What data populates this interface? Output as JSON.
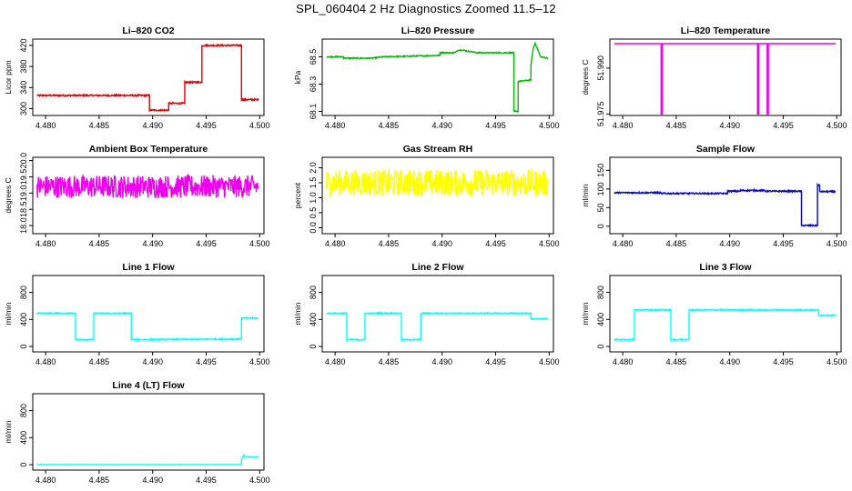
{
  "suptitle": "SPL_060404  2 Hz Diagnostics Zoomed 11.5–12",
  "chart_data": [
    {
      "type": "line",
      "title": "Li–820 CO2",
      "ylabel": "Licor ppm",
      "color": "#dd0000",
      "xlim": [
        4.4788,
        4.5004
      ],
      "ylim": [
        287,
        432
      ],
      "xticks": [
        "4.480",
        "4.485",
        "4.490",
        "4.495",
        "4.500"
      ],
      "yticks": [
        {
          "v": 300,
          "label": "300"
        },
        {
          "v": 340,
          "label": "340"
        },
        {
          "v": 380,
          "label": "380"
        },
        {
          "v": 420,
          "label": "420"
        }
      ],
      "x": [
        4.4792,
        4.4897,
        4.4897,
        4.4915,
        4.4915,
        4.493,
        4.493,
        4.4946,
        4.4946,
        4.4983,
        4.4983,
        4.4999
      ],
      "y": [
        325,
        325,
        297,
        297,
        310,
        310,
        350,
        350,
        420,
        420,
        317,
        317
      ],
      "noise": 1.5
    },
    {
      "type": "line",
      "title": "Li–820 Pressure",
      "ylabel": "kPa",
      "color": "#00bb00",
      "xlim": [
        4.4788,
        4.5004
      ],
      "ylim": [
        68.07,
        68.63
      ],
      "xticks": [
        "4.480",
        "4.485",
        "4.490",
        "4.495",
        "4.500"
      ],
      "yticks": [
        {
          "v": 68.1,
          "label": "68.1"
        },
        {
          "v": 68.3,
          "label": "68.3"
        },
        {
          "v": 68.5,
          "label": "68.5"
        }
      ],
      "x": [
        4.4792,
        4.4808,
        4.4808,
        4.4835,
        4.4845,
        4.4898,
        4.4898,
        4.4912,
        4.4915,
        4.4918,
        4.4933,
        4.4967,
        4.4967,
        4.4969,
        4.4971,
        4.4971,
        4.4983,
        4.4983,
        4.4985,
        4.4987,
        4.4989,
        4.4992,
        4.4999
      ],
      "y": [
        68.5,
        68.5,
        68.49,
        68.49,
        68.5,
        68.51,
        68.53,
        68.53,
        68.55,
        68.55,
        68.53,
        68.53,
        68.1,
        68.1,
        68.1,
        68.32,
        68.33,
        68.44,
        68.56,
        68.6,
        68.56,
        68.5,
        68.49
      ],
      "noise": 0.004
    },
    {
      "type": "line",
      "title": "Li–820 Temperature",
      "ylabel": "degrees C",
      "color": "#ee00ee",
      "xlim": [
        4.4788,
        4.5004
      ],
      "ylim": [
        51.9745,
        51.9995
      ],
      "xticks": [
        "4.480",
        "4.485",
        "4.490",
        "4.495",
        "4.500"
      ],
      "yticks": [
        {
          "v": 51.975,
          "label": "51.975"
        },
        {
          "v": 51.99,
          "label": "51.990"
        }
      ],
      "x": [
        4.4792,
        4.4836,
        4.4836,
        4.4837,
        4.4837,
        4.4926,
        4.4926,
        4.4927,
        4.4927,
        4.4935,
        4.4935,
        4.4936,
        4.4936,
        4.4999
      ],
      "y": [
        51.998,
        51.998,
        51.975,
        51.975,
        51.998,
        51.998,
        51.975,
        51.975,
        51.998,
        51.998,
        51.975,
        51.975,
        51.998,
        51.998
      ],
      "noise": 0
    },
    {
      "type": "line",
      "title": "Ambient Box Temperature",
      "ylabel": "degrees C",
      "color": "#ee00ee",
      "xlim": [
        4.4788,
        4.5004
      ],
      "ylim": [
        17.75,
        20.1
      ],
      "xticks": [
        "4.480",
        "4.485",
        "4.490",
        "4.495",
        "4.500"
      ],
      "yticks": [
        {
          "v": 18.0,
          "label": "18.0"
        },
        {
          "v": 18.5,
          "label": "18.5"
        },
        {
          "v": 19.0,
          "label": "19.0"
        },
        {
          "v": 19.5,
          "label": "19.5"
        },
        {
          "v": 20.0,
          "label": "20.0"
        }
      ],
      "x": [
        4.4792,
        4.4999
      ],
      "y": [
        19.2,
        19.2
      ],
      "noise": 0.35
    },
    {
      "type": "line",
      "title": "Gas Stream RH",
      "ylabel": "percent",
      "color": "#ffff00",
      "xlim": [
        4.4788,
        4.5004
      ],
      "ylim": [
        -0.2,
        2.35
      ],
      "xticks": [
        "4.480",
        "4.485",
        "4.490",
        "4.495",
        "4.500"
      ],
      "yticks": [
        {
          "v": 0.0,
          "label": "0.0"
        },
        {
          "v": 0.5,
          "label": "0.5"
        },
        {
          "v": 1.0,
          "label": "1.0"
        },
        {
          "v": 1.5,
          "label": "1.5"
        },
        {
          "v": 2.0,
          "label": "2.0"
        }
      ],
      "x": [
        4.4792,
        4.4999
      ],
      "y": [
        1.5,
        1.5
      ],
      "noise": 0.45
    },
    {
      "type": "line",
      "title": "Sample Flow",
      "ylabel": "ml/min",
      "color": "#0000dd",
      "xlim": [
        4.4788,
        4.5004
      ],
      "ylim": [
        -20,
        185
      ],
      "xticks": [
        "4.480",
        "4.485",
        "4.490",
        "4.495",
        "4.500"
      ],
      "yticks": [
        {
          "v": 0,
          "label": "0"
        },
        {
          "v": 50,
          "label": "50"
        },
        {
          "v": 100,
          "label": "100"
        },
        {
          "v": 150,
          "label": "150"
        }
      ],
      "x": [
        4.4792,
        4.4835,
        4.4835,
        4.4898,
        4.4898,
        4.491,
        4.491,
        4.4933,
        4.4933,
        4.4967,
        4.4967,
        4.4982,
        4.4982,
        4.4984,
        4.4984,
        4.4999
      ],
      "y": [
        90,
        90,
        88,
        88,
        94,
        94,
        96,
        96,
        94,
        94,
        2,
        2,
        110,
        110,
        93,
        93
      ],
      "noise": 1.8
    },
    {
      "type": "line",
      "title": "Line 1 Flow",
      "ylabel": "ml/min",
      "color": "#00ffff",
      "xlim": [
        4.4788,
        4.5004
      ],
      "ylim": [
        -80,
        1050
      ],
      "xticks": [
        "4.480",
        "4.485",
        "4.490",
        "4.495",
        "4.500"
      ],
      "yticks": [
        {
          "v": 0,
          "label": "0"
        },
        {
          "v": 400,
          "label": "400"
        },
        {
          "v": 800,
          "label": "800"
        }
      ],
      "x": [
        4.4792,
        4.4828,
        4.4828,
        4.4845,
        4.4845,
        4.488,
        4.488,
        4.4983,
        4.4983,
        4.4999
      ],
      "y": [
        490,
        490,
        100,
        100,
        490,
        490,
        100,
        110,
        420,
        420
      ],
      "noise": 9
    },
    {
      "type": "line",
      "title": "Line 2 Flow",
      "ylabel": "ml/min",
      "color": "#00ffff",
      "xlim": [
        4.4788,
        4.5004
      ],
      "ylim": [
        -80,
        1050
      ],
      "xticks": [
        "4.480",
        "4.485",
        "4.490",
        "4.495",
        "4.500"
      ],
      "yticks": [
        {
          "v": 0,
          "label": "0"
        },
        {
          "v": 400,
          "label": "400"
        },
        {
          "v": 800,
          "label": "800"
        }
      ],
      "x": [
        4.4792,
        4.4811,
        4.4811,
        4.4828,
        4.4828,
        4.4862,
        4.4862,
        4.488,
        4.488,
        4.4983,
        4.4983,
        4.4999
      ],
      "y": [
        490,
        490,
        100,
        100,
        490,
        490,
        100,
        100,
        490,
        490,
        410,
        410
      ],
      "noise": 9
    },
    {
      "type": "line",
      "title": "Line 3 Flow",
      "ylabel": "ml/min",
      "color": "#00ffff",
      "xlim": [
        4.4788,
        4.5004
      ],
      "ylim": [
        -80,
        1050
      ],
      "xticks": [
        "4.480",
        "4.485",
        "4.490",
        "4.495",
        "4.500"
      ],
      "yticks": [
        {
          "v": 0,
          "label": "0"
        },
        {
          "v": 400,
          "label": "400"
        },
        {
          "v": 800,
          "label": "800"
        }
      ],
      "x": [
        4.4792,
        4.4811,
        4.4811,
        4.4845,
        4.4845,
        4.4862,
        4.4862,
        4.4983,
        4.4983,
        4.4999
      ],
      "y": [
        100,
        100,
        540,
        540,
        100,
        100,
        540,
        540,
        460,
        460
      ],
      "noise": 9
    },
    {
      "type": "line",
      "title": "Line 4 (LT) Flow",
      "ylabel": "ml/min",
      "color": "#00ffff",
      "xlim": [
        4.4788,
        4.5004
      ],
      "ylim": [
        -80,
        1050
      ],
      "xticks": [
        "4.480",
        "4.485",
        "4.490",
        "4.495",
        "4.500"
      ],
      "yticks": [
        {
          "v": 0,
          "label": "0"
        },
        {
          "v": 400,
          "label": "400"
        },
        {
          "v": 800,
          "label": "800"
        }
      ],
      "x": [
        4.4792,
        4.4983,
        4.4983,
        4.4985,
        4.4986,
        4.4999
      ],
      "y": [
        0,
        0,
        80,
        140,
        120,
        115
      ],
      "noise": 1.5
    }
  ]
}
